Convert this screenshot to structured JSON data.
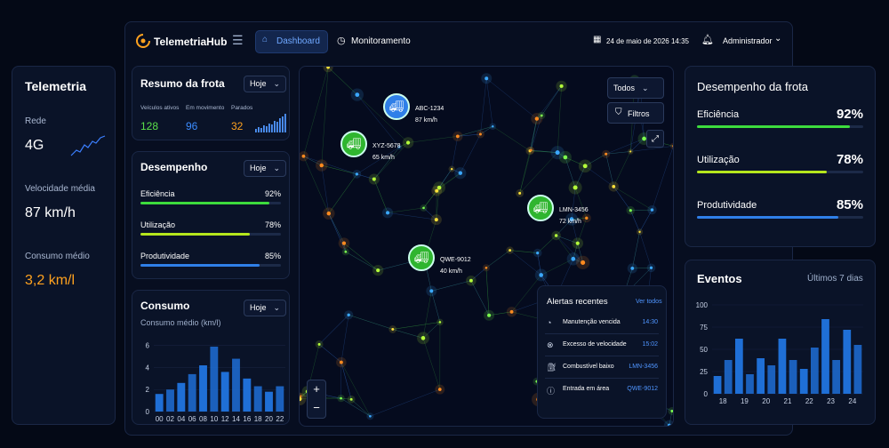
{
  "sidebar": {
    "title": "Telemetria",
    "items": [
      {
        "label": "Rede",
        "value": "4G"
      },
      {
        "label": "Velocidade média",
        "value": "87 km/h"
      },
      {
        "label": "Consumo médio",
        "value": "3,2 km/l"
      }
    ]
  },
  "header": {
    "brand": "TelemetriaHub",
    "nav": [
      "Dashboard",
      "Monitoramento"
    ],
    "datetime": "24 de maio de 2026 14:35",
    "user": "Administrador"
  },
  "fleet_summary": {
    "title": "Resumo da frota",
    "filter": "Hoje",
    "stats": [
      {
        "label": "Veículos ativos",
        "value": 128,
        "color": "#5be04a"
      },
      {
        "label": "Em movimento",
        "value": 96,
        "color": "#3b8cff"
      },
      {
        "label": "Parados",
        "value": 32,
        "color": "#ffa21f"
      }
    ]
  },
  "performance": {
    "title": "Desempenho",
    "filter": "Hoje",
    "metrics": [
      {
        "name": "Eficiência",
        "value": 92,
        "value_label": "92%",
        "color": "#3ddc3d"
      },
      {
        "name": "Utilização",
        "value": 78,
        "value_label": "78%",
        "color": "#b5e61d"
      },
      {
        "name": "Produtividade",
        "value": 85,
        "value_label": "85%",
        "color": "#2f7fe8"
      }
    ]
  },
  "consumption": {
    "title": "Consumo",
    "filter": "Hoje",
    "chart_data": {
      "type": "bar",
      "subtitle": "Consumo médio (km/l)",
      "categories": [
        "00",
        "02",
        "04",
        "06",
        "08",
        "10",
        "12",
        "14",
        "16",
        "18",
        "20",
        "22"
      ],
      "values": [
        1.6,
        2.0,
        2.6,
        3.4,
        4.2,
        5.9,
        3.6,
        4.8,
        3.0,
        2.3,
        1.8,
        2.3
      ],
      "color": "#1f6fd6",
      "ylim": [
        0,
        6.3
      ],
      "yticks": [
        0,
        2,
        4,
        6
      ]
    }
  },
  "map": {
    "filter": "Todos",
    "filters_button": "Filtros",
    "vehicles": [
      {
        "plate": "ABC-1234",
        "speed": "87 km/h",
        "color": "#2f7fe8"
      },
      {
        "plate": "XYZ-5678",
        "speed": "65 km/h",
        "color": "#2fb52f"
      },
      {
        "plate": "LMN-3456",
        "speed": "72 km/h",
        "color": "#2fb52f"
      },
      {
        "plate": "QWE-9012",
        "speed": "40 km/h",
        "color": "#2fb52f"
      }
    ],
    "zoom": [
      "+",
      "−"
    ]
  },
  "alerts": {
    "title": "Alertas recentes",
    "link": "Ver todos",
    "items": [
      {
        "text": "Manutenção vencida",
        "detail": "14:30"
      },
      {
        "text": "Excesso de velocidade",
        "detail": "15:02"
      },
      {
        "text": "Combustível baixo",
        "detail": "LMN-3456"
      },
      {
        "text": "Entrada em área",
        "detail": "QWE-9012"
      }
    ]
  },
  "fleet_performance": {
    "title": "Desempenho da frota",
    "metrics": [
      {
        "name": "Eficiência",
        "value": 92,
        "value_label": "92%",
        "color": "#3ddc3d"
      },
      {
        "name": "Utilização",
        "value": 78,
        "value_label": "78%",
        "color": "#b5e61d"
      },
      {
        "name": "Produtividade",
        "value": 85,
        "value_label": "85%",
        "color": "#2f7fe8"
      }
    ]
  },
  "events": {
    "title": "Eventos",
    "period": "Últimos 7 dias",
    "chart_data": {
      "type": "bar",
      "categories": [
        "18",
        null,
        "19",
        null,
        "20",
        null,
        "21",
        null,
        "22",
        null,
        "23",
        null,
        "24",
        null
      ],
      "values": [
        20,
        38,
        62,
        22,
        40,
        32,
        62,
        38,
        28,
        52,
        84,
        38,
        72,
        55
      ],
      "color": "#1f6fd6",
      "ylim": [
        0,
        100
      ],
      "yticks": [
        0,
        25,
        50,
        75,
        100
      ]
    }
  }
}
